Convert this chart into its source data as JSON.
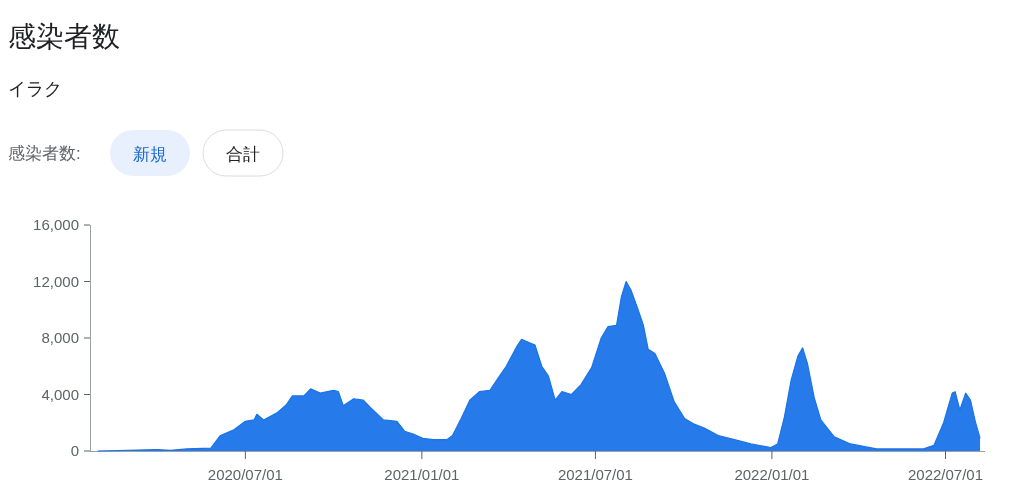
{
  "chart_data": {
    "type": "area",
    "title": "感染者数",
    "subtitle": "イラク",
    "annotations": [
      "感染者数:",
      "新規",
      "合計"
    ],
    "x": [
      "2020-01-29",
      "2020-03-31",
      "2020-04-14",
      "2020-05-01",
      "2020-05-26",
      "2020-06-05",
      "2020-06-19",
      "2020-07-01",
      "2020-07-10",
      "2020-07-13",
      "2020-07-20",
      "2020-08-03",
      "2020-08-13",
      "2020-08-19",
      "2020-08-31",
      "2020-09-07",
      "2020-09-17",
      "2020-10-01",
      "2020-10-06",
      "2020-10-11",
      "2020-10-22",
      "2020-11-01",
      "2020-11-08",
      "2020-11-22",
      "2020-12-06",
      "2020-12-14",
      "2020-12-23",
      "2021-01-02",
      "2021-01-13",
      "2021-01-27",
      "2021-02-02",
      "2021-02-11",
      "2021-02-20",
      "2021-03-02",
      "2021-03-13",
      "2021-03-21",
      "2021-03-30",
      "2021-04-10",
      "2021-04-15",
      "2021-04-22",
      "2021-04-29",
      "2021-05-06",
      "2021-05-13",
      "2021-05-20",
      "2021-05-27",
      "2021-06-06",
      "2021-06-16",
      "2021-06-27",
      "2021-07-07",
      "2021-07-14",
      "2021-07-23",
      "2021-07-28",
      "2021-08-02",
      "2021-08-07",
      "2021-08-14",
      "2021-08-20",
      "2021-08-25",
      "2021-09-01",
      "2021-09-11",
      "2021-09-21",
      "2021-10-02",
      "2021-10-12",
      "2021-10-23",
      "2021-11-06",
      "2021-11-23",
      "2021-12-10",
      "2021-12-31",
      "2022-01-07",
      "2022-01-14",
      "2022-01-21",
      "2022-01-28",
      "2022-02-02",
      "2022-02-07",
      "2022-02-14",
      "2022-02-21",
      "2022-03-07",
      "2022-03-24",
      "2022-04-20",
      "2022-06-08",
      "2022-06-19",
      "2022-06-29",
      "2022-07-08",
      "2022-07-11",
      "2022-07-16",
      "2022-07-22",
      "2022-07-27",
      "2022-08-01",
      "2022-08-06"
    ],
    "series": [
      {
        "color": "#1a73e8",
        "values": [
          0,
          100,
          50,
          150,
          200,
          1100,
          1500,
          2100,
          2200,
          2600,
          2200,
          2700,
          3300,
          3900,
          3900,
          4400,
          4100,
          4300,
          4200,
          3200,
          3700,
          3600,
          3100,
          2200,
          2100,
          1400,
          1200,
          900,
          800,
          800,
          1100,
          2300,
          3600,
          4200,
          4300,
          5100,
          6000,
          7400,
          7900,
          7700,
          7500,
          6000,
          5300,
          3600,
          4200,
          4000,
          4700,
          5900,
          8000,
          8800,
          8900,
          10900,
          12000,
          11400,
          10100,
          8900,
          7200,
          6900,
          5500,
          3500,
          2300,
          1900,
          1600,
          1100,
          800,
          500,
          250,
          500,
          2400,
          5000,
          6700,
          7300,
          6200,
          3800,
          2200,
          1000,
          500,
          150,
          150,
          400,
          2000,
          4100,
          4200,
          2900,
          4100,
          3600,
          2100,
          900
        ]
      }
    ],
    "xlim": [
      "2020-01-21",
      "2022-08-07"
    ],
    "xticks": [
      {
        "value": "2020-07-01",
        "label": "2020/07/01"
      },
      {
        "value": "2021-01-01",
        "label": "2021/01/01"
      },
      {
        "value": "2021-07-01",
        "label": "2021/07/01"
      },
      {
        "value": "2022-01-01",
        "label": "2022/01/01"
      },
      {
        "value": "2022-07-01",
        "label": "2022/07/01"
      }
    ],
    "ylim": [
      0,
      16000
    ],
    "yticks": [
      {
        "value": 0,
        "label": "0"
      },
      {
        "value": 4000,
        "label": "4,000"
      },
      {
        "value": 8000,
        "label": "8,000"
      },
      {
        "value": 12000,
        "label": "12,000"
      },
      {
        "value": 16000,
        "label": "16,000"
      }
    ]
  }
}
